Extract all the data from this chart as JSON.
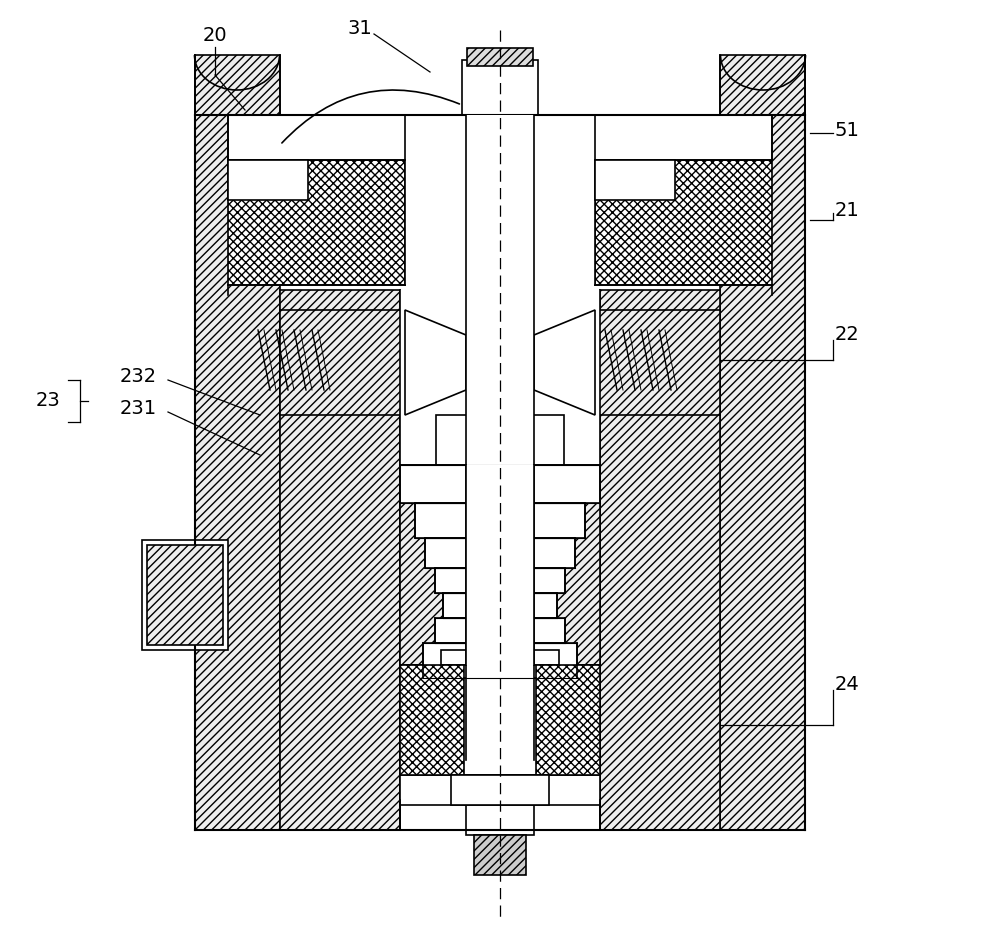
{
  "bg_color": "#ffffff",
  "line_color": "#000000",
  "figsize": [
    10.0,
    9.41
  ],
  "dpi": 100
}
